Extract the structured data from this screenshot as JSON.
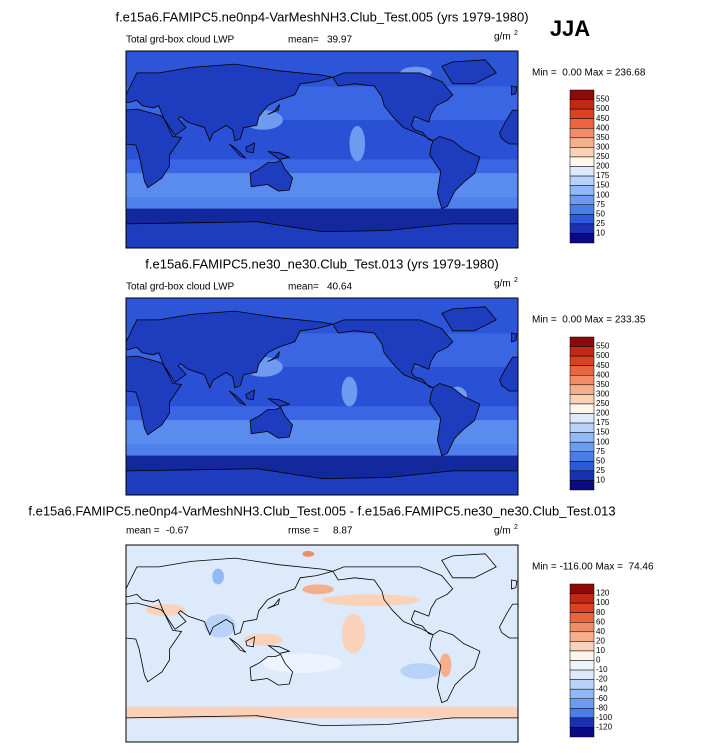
{
  "header": {
    "season": "JJA"
  },
  "panels": [
    {
      "title": "f.e15a6.FAMIPC5.ne0np4-VarMeshNH3.Club_Test.005 (yrs 1979-1980)",
      "left_label": "Total grd-box cloud LWP",
      "mean_label": "mean=",
      "mean": 39.97,
      "units": "g/m",
      "units_exp": "2",
      "minmax": "Min =  0.00 Max = 236.68",
      "colorbar": {
        "levels": [
          550,
          500,
          450,
          400,
          350,
          300,
          250,
          200,
          175,
          150,
          100,
          75,
          50,
          25,
          10
        ],
        "colors": [
          "#8c0a0a",
          "#c32814",
          "#dc4123",
          "#eb6441",
          "#f08c69",
          "#f5af8c",
          "#fad2b9",
          "#fff5eb",
          "#dceafc",
          "#b9d2fa",
          "#91b9f5",
          "#6e9bf0",
          "#4b7de6",
          "#2d5adc",
          "#1932b4",
          "#0a0a82"
        ]
      }
    },
    {
      "title": "f.e15a6.FAMIPC5.ne30_ne30.Club_Test.013 (yrs 1979-1980)",
      "left_label": "Total grd-box cloud LWP",
      "mean_label": "mean=",
      "mean": 40.64,
      "units": "g/m",
      "units_exp": "2",
      "minmax": "Min =  0.00 Max = 233.35",
      "colorbar": {
        "levels": [
          550,
          500,
          450,
          400,
          350,
          300,
          250,
          200,
          175,
          150,
          100,
          75,
          50,
          25,
          10
        ],
        "colors": [
          "#8c0a0a",
          "#c32814",
          "#dc4123",
          "#eb6441",
          "#f08c69",
          "#f5af8c",
          "#fad2b9",
          "#fff5eb",
          "#dceafc",
          "#b9d2fa",
          "#91b9f5",
          "#6e9bf0",
          "#4b7de6",
          "#2d5adc",
          "#1932b4",
          "#0a0a82"
        ]
      }
    },
    {
      "title": "f.e15a6.FAMIPC5.ne0np4-VarMeshNH3.Club_Test.005 - f.e15a6.FAMIPC5.ne30_ne30.Club_Test.013",
      "mean_label": "mean =",
      "mean": -0.67,
      "rmse_label": "rmse =",
      "rmse": 8.87,
      "units": "g/m",
      "units_exp": "2",
      "minmax": "Min = -116.00 Max =  74.46",
      "colorbar": {
        "levels": [
          120,
          100,
          80,
          60,
          40,
          20,
          10,
          0,
          -10,
          -20,
          -40,
          -60,
          -80,
          -100,
          -120
        ],
        "colors": [
          "#8c0a0a",
          "#c32814",
          "#dc4123",
          "#eb6441",
          "#f08c69",
          "#f5af8c",
          "#fad2b9",
          "#fff5eb",
          "#eef4ff",
          "#dceafc",
          "#b9d2fa",
          "#91b9f5",
          "#6e9bf0",
          "#4b7de6",
          "#1932b4",
          "#0a0a82"
        ]
      }
    }
  ]
}
